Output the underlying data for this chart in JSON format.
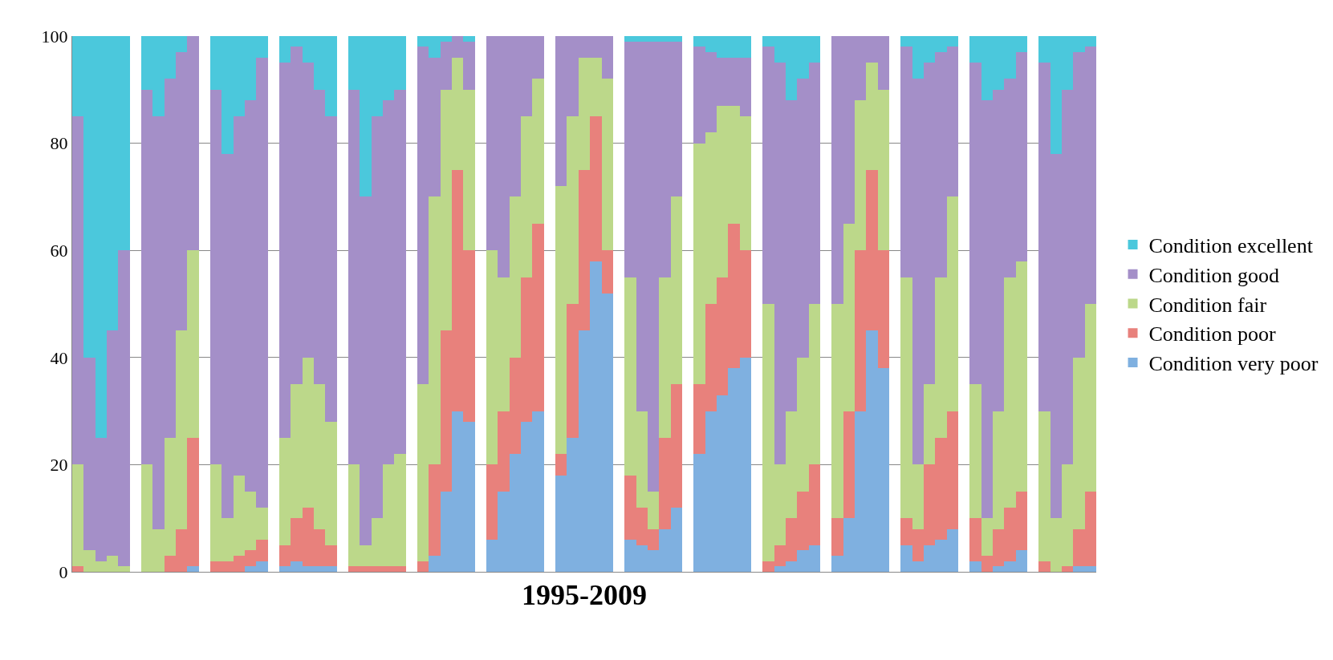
{
  "chart_data": {
    "type": "bar",
    "stacked": true,
    "xlabel": "1995-2009",
    "ylim": [
      0,
      100
    ],
    "yticks": [
      0,
      20,
      40,
      60,
      80,
      100
    ],
    "grid": "y",
    "legend": "right",
    "tick_labels": "y",
    "categories": [
      null,
      null,
      null,
      null,
      null,
      null,
      null,
      null,
      null,
      null,
      null,
      null,
      null,
      null,
      null,
      null,
      null,
      null,
      null,
      null,
      null,
      null,
      null,
      null,
      null,
      null,
      null,
      null,
      null,
      null,
      null,
      null,
      null,
      null,
      null,
      null,
      null,
      null,
      null,
      null,
      null,
      null,
      null,
      null,
      null,
      null,
      null,
      null,
      null,
      null,
      null,
      null,
      null,
      null,
      null,
      null,
      null,
      null,
      null,
      null,
      null,
      null,
      null,
      null,
      null,
      null,
      null,
      null,
      null,
      null,
      null,
      null,
      null,
      null,
      null,
      null,
      null,
      null,
      null,
      null,
      null,
      null,
      null,
      null,
      null,
      null,
      null,
      null,
      null
    ],
    "series": [
      {
        "name": "Condition very poor",
        "color": "#7fb0e0",
        "values": [
          0,
          0,
          0,
          0,
          0,
          null,
          0,
          0,
          0,
          0,
          1,
          null,
          0,
          0,
          0,
          1,
          2,
          null,
          1,
          2,
          1,
          1,
          1,
          null,
          0,
          0,
          0,
          0,
          0,
          null,
          0,
          3,
          15,
          30,
          28,
          null,
          6,
          15,
          22,
          28,
          30,
          null,
          18,
          25,
          45,
          58,
          52,
          null,
          6,
          5,
          4,
          8,
          12,
          null,
          22,
          30,
          33,
          38,
          40,
          null,
          0,
          1,
          2,
          4,
          5,
          null,
          3,
          10,
          30,
          45,
          38,
          null,
          5,
          2,
          5,
          6,
          8,
          null,
          2,
          0,
          1,
          2,
          4,
          null,
          0,
          0,
          0,
          1,
          1
        ]
      },
      {
        "name": "Condition poor",
        "color": "#e8817c",
        "values": [
          1,
          0,
          0,
          0,
          0,
          null,
          0,
          0,
          3,
          8,
          24,
          null,
          2,
          2,
          3,
          3,
          4,
          null,
          4,
          8,
          11,
          7,
          4,
          null,
          1,
          1,
          1,
          1,
          1,
          null,
          2,
          17,
          30,
          45,
          32,
          null,
          14,
          15,
          18,
          27,
          35,
          null,
          4,
          25,
          30,
          27,
          8,
          null,
          12,
          7,
          4,
          17,
          23,
          null,
          13,
          20,
          22,
          27,
          20,
          null,
          2,
          4,
          8,
          11,
          15,
          null,
          7,
          20,
          30,
          30,
          22,
          null,
          5,
          6,
          15,
          19,
          22,
          null,
          8,
          3,
          7,
          10,
          11,
          null,
          2,
          0,
          1,
          7,
          14
        ]
      },
      {
        "name": "Condition fair",
        "color": "#bcd88a",
        "values": [
          19,
          4,
          2,
          3,
          1,
          null,
          20,
          8,
          22,
          37,
          35,
          null,
          18,
          8,
          15,
          11,
          6,
          null,
          20,
          25,
          28,
          27,
          23,
          null,
          19,
          4,
          9,
          19,
          21,
          null,
          33,
          50,
          45,
          21,
          30,
          null,
          40,
          25,
          30,
          30,
          27,
          null,
          50,
          35,
          21,
          11,
          32,
          null,
          37,
          18,
          7,
          30,
          35,
          null,
          45,
          32,
          32,
          22,
          25,
          null,
          48,
          15,
          20,
          25,
          30,
          null,
          40,
          35,
          28,
          20,
          30,
          null,
          45,
          12,
          15,
          30,
          40,
          null,
          25,
          7,
          22,
          43,
          43,
          null,
          28,
          10,
          19,
          32,
          35
        ]
      },
      {
        "name": "Condition good",
        "color": "#a48fc8",
        "values": [
          65,
          36,
          23,
          42,
          59,
          null,
          70,
          77,
          67,
          52,
          40,
          null,
          70,
          68,
          67,
          73,
          84,
          null,
          70,
          63,
          55,
          55,
          57,
          null,
          70,
          65,
          75,
          68,
          68,
          null,
          63,
          26,
          9,
          4,
          9,
          null,
          40,
          45,
          30,
          15,
          8,
          null,
          28,
          15,
          4,
          4,
          8,
          null,
          44,
          69,
          84,
          44,
          29,
          null,
          18,
          15,
          9,
          9,
          11,
          null,
          48,
          75,
          58,
          52,
          45,
          null,
          50,
          35,
          12,
          5,
          10,
          null,
          43,
          72,
          60,
          42,
          28,
          null,
          60,
          78,
          60,
          37,
          39,
          null,
          65,
          68,
          70,
          57,
          48
        ]
      },
      {
        "name": "Condition excellent",
        "color": "#4bc8dc",
        "values": [
          15,
          60,
          75,
          55,
          40,
          null,
          10,
          15,
          8,
          3,
          0,
          null,
          10,
          22,
          15,
          12,
          4,
          null,
          5,
          2,
          5,
          10,
          15,
          null,
          10,
          30,
          15,
          12,
          10,
          null,
          2,
          4,
          1,
          0,
          1,
          null,
          0,
          0,
          0,
          0,
          0,
          null,
          0,
          0,
          0,
          0,
          0,
          null,
          1,
          1,
          1,
          1,
          1,
          null,
          2,
          3,
          4,
          4,
          4,
          null,
          2,
          5,
          12,
          8,
          5,
          null,
          0,
          0,
          0,
          0,
          0,
          null,
          2,
          8,
          5,
          3,
          2,
          null,
          5,
          12,
          10,
          8,
          3,
          null,
          5,
          22,
          10,
          3,
          2
        ]
      }
    ]
  }
}
